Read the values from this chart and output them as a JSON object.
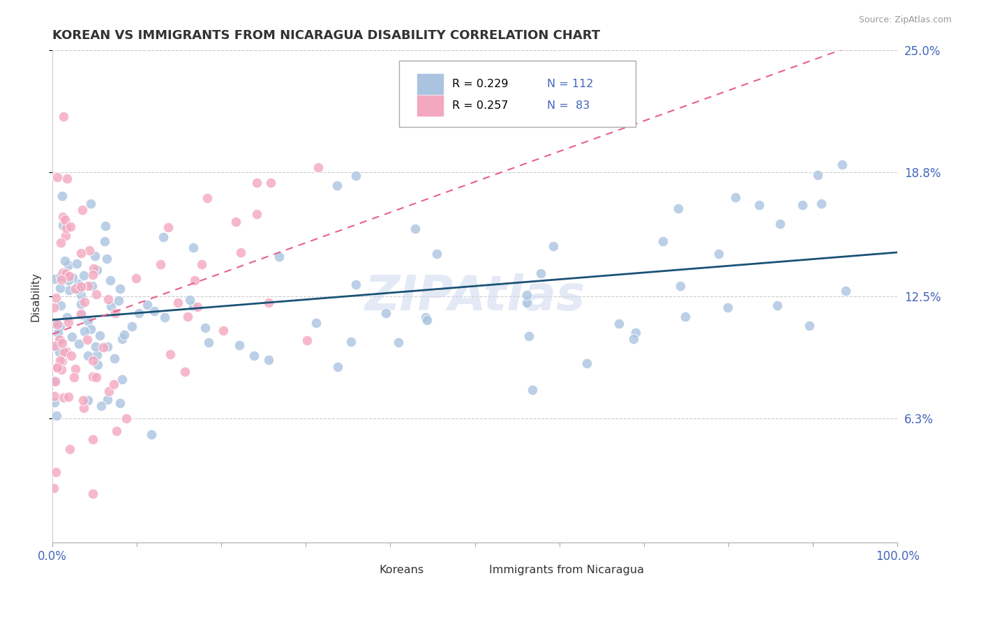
{
  "title": "KOREAN VS IMMIGRANTS FROM NICARAGUA DISABILITY CORRELATION CHART",
  "source": "Source: ZipAtlas.com",
  "ylabel": "Disability",
  "xlim": [
    0,
    100
  ],
  "ylim": [
    0,
    25
  ],
  "yticks": [
    6.3,
    12.5,
    18.8,
    25.0
  ],
  "ytick_labels": [
    "6.3%",
    "12.5%",
    "18.8%",
    "25.0%"
  ],
  "watermark": "ZIPAtlas",
  "legend_r1": "R = 0.229",
  "legend_n1": "N = 112",
  "legend_r2": "R = 0.257",
  "legend_n2": "N =  83",
  "color_blue": "#aac4e0",
  "color_pink": "#f4a8c0",
  "trend_blue": "#1a5276",
  "trend_pink": "#e8608a",
  "background": "#ffffff",
  "grid_color": "#cccccc",
  "text_color": "#4466bb",
  "title_color": "#333333"
}
